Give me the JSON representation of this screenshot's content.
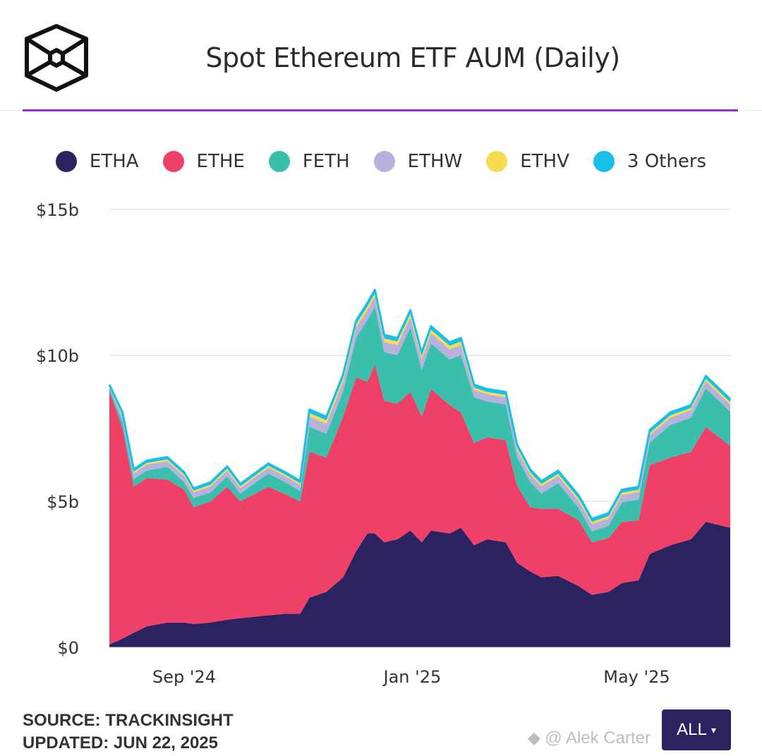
{
  "header": {
    "title": "Spot Ethereum ETF AUM (Daily)",
    "logo": "hexagon-cube-logo"
  },
  "footer": {
    "source": "SOURCE: TRACKINSIGHT",
    "updated": "UPDATED: JUN 22, 2025",
    "range_button": "ALL",
    "watermark": "@ Alek Carter"
  },
  "chart_data": {
    "type": "area",
    "stacked": true,
    "title": "Spot Ethereum ETF AUM (Daily)",
    "ylim": [
      0,
      15
    ],
    "y_ticks": [
      {
        "v": 0,
        "label": "$0"
      },
      {
        "v": 5,
        "label": "$5b"
      },
      {
        "v": 10,
        "label": "$10b"
      },
      {
        "v": 15,
        "label": "$15b"
      }
    ],
    "x_ticks": [
      {
        "date": "2024-09-01",
        "label": "Sep '24"
      },
      {
        "date": "2025-01-01",
        "label": "Jan '25"
      },
      {
        "date": "2025-05-01",
        "label": "May '25"
      }
    ],
    "xlim": [
      "2024-07-23",
      "2025-06-20"
    ],
    "grid": true,
    "legend_position": "top",
    "x": [
      "2024-07-23",
      "2024-07-30",
      "2024-08-05",
      "2024-08-12",
      "2024-08-23",
      "2024-09-01",
      "2024-09-06",
      "2024-09-15",
      "2024-09-24",
      "2024-10-01",
      "2024-10-16",
      "2024-10-25",
      "2024-11-02",
      "2024-11-07",
      "2024-11-16",
      "2024-11-25",
      "2024-12-02",
      "2024-12-08",
      "2024-12-12",
      "2024-12-17",
      "2024-12-24",
      "2024-12-31",
      "2025-01-06",
      "2025-01-11",
      "2025-01-21",
      "2025-01-27",
      "2025-02-03",
      "2025-02-10",
      "2025-02-20",
      "2025-02-26",
      "2025-03-05",
      "2025-03-11",
      "2025-03-20",
      "2025-03-31",
      "2025-04-07",
      "2025-04-16",
      "2025-04-23",
      "2025-05-02",
      "2025-05-08",
      "2025-05-19",
      "2025-05-30",
      "2025-06-07",
      "2025-06-20"
    ],
    "series": [
      {
        "name": "ETHA",
        "color": "#2a2360",
        "values": [
          0.1,
          0.3,
          0.5,
          0.72,
          0.85,
          0.85,
          0.8,
          0.85,
          0.95,
          1.0,
          1.1,
          1.15,
          1.15,
          1.7,
          1.9,
          2.4,
          3.3,
          3.9,
          3.9,
          3.6,
          3.7,
          4.0,
          3.6,
          4.0,
          3.9,
          4.1,
          3.5,
          3.7,
          3.6,
          2.9,
          2.6,
          2.4,
          2.45,
          2.1,
          1.8,
          1.9,
          2.2,
          2.3,
          3.2,
          3.5,
          3.7,
          4.3,
          4.1
        ]
      },
      {
        "name": "ETHE",
        "color": "#ef4068",
        "values": [
          8.67,
          7.2,
          5.0,
          5.08,
          4.9,
          4.55,
          4.0,
          4.15,
          4.55,
          4.0,
          4.4,
          4.1,
          3.85,
          5.0,
          4.6,
          5.5,
          5.95,
          5.2,
          5.8,
          4.85,
          4.65,
          4.75,
          4.3,
          4.85,
          4.4,
          3.95,
          3.5,
          3.5,
          3.5,
          2.65,
          2.2,
          2.35,
          2.3,
          2.25,
          1.8,
          1.85,
          2.1,
          2.05,
          3.05,
          3.0,
          3.0,
          3.25,
          2.8
        ]
      },
      {
        "name": "FETH",
        "color": "#3bbfad",
        "values": [
          0.1,
          0.21,
          0.26,
          0.26,
          0.43,
          0.26,
          0.31,
          0.31,
          0.36,
          0.26,
          0.46,
          0.41,
          0.36,
          0.86,
          0.81,
          0.86,
          1.36,
          2.11,
          1.96,
          1.66,
          1.66,
          2.21,
          1.61,
          1.56,
          1.56,
          1.96,
          1.57,
          1.22,
          1.22,
          0.97,
          0.87,
          0.52,
          0.87,
          0.42,
          0.37,
          0.42,
          0.67,
          0.72,
          0.77,
          1.12,
          1.17,
          1.32,
          1.17
        ]
      },
      {
        "name": "ETHW",
        "color": "#b8b0dd",
        "values": [
          0.08,
          0.2,
          0.2,
          0.2,
          0.2,
          0.2,
          0.2,
          0.2,
          0.2,
          0.2,
          0.2,
          0.2,
          0.2,
          0.35,
          0.35,
          0.35,
          0.35,
          0.35,
          0.35,
          0.35,
          0.35,
          0.35,
          0.35,
          0.35,
          0.35,
          0.35,
          0.25,
          0.25,
          0.25,
          0.25,
          0.25,
          0.25,
          0.25,
          0.25,
          0.25,
          0.25,
          0.25,
          0.25,
          0.25,
          0.25,
          0.25,
          0.25,
          0.25
        ]
      },
      {
        "name": "ETHV",
        "color": "#f7dc50",
        "values": [
          0.03,
          0.06,
          0.06,
          0.06,
          0.06,
          0.06,
          0.06,
          0.06,
          0.06,
          0.06,
          0.06,
          0.06,
          0.06,
          0.12,
          0.12,
          0.12,
          0.12,
          0.12,
          0.12,
          0.12,
          0.12,
          0.12,
          0.12,
          0.12,
          0.12,
          0.12,
          0.08,
          0.08,
          0.08,
          0.08,
          0.08,
          0.08,
          0.08,
          0.08,
          0.08,
          0.08,
          0.08,
          0.08,
          0.08,
          0.08,
          0.08,
          0.08,
          0.08
        ]
      },
      {
        "name": "3 Others",
        "color": "#16c0e8",
        "values": [
          0.02,
          0.08,
          0.08,
          0.08,
          0.08,
          0.08,
          0.08,
          0.08,
          0.08,
          0.08,
          0.08,
          0.08,
          0.08,
          0.12,
          0.12,
          0.12,
          0.12,
          0.12,
          0.12,
          0.12,
          0.12,
          0.12,
          0.12,
          0.12,
          0.12,
          0.12,
          0.1,
          0.1,
          0.1,
          0.1,
          0.1,
          0.1,
          0.1,
          0.1,
          0.1,
          0.1,
          0.1,
          0.1,
          0.1,
          0.1,
          0.1,
          0.1,
          0.1
        ]
      }
    ]
  }
}
